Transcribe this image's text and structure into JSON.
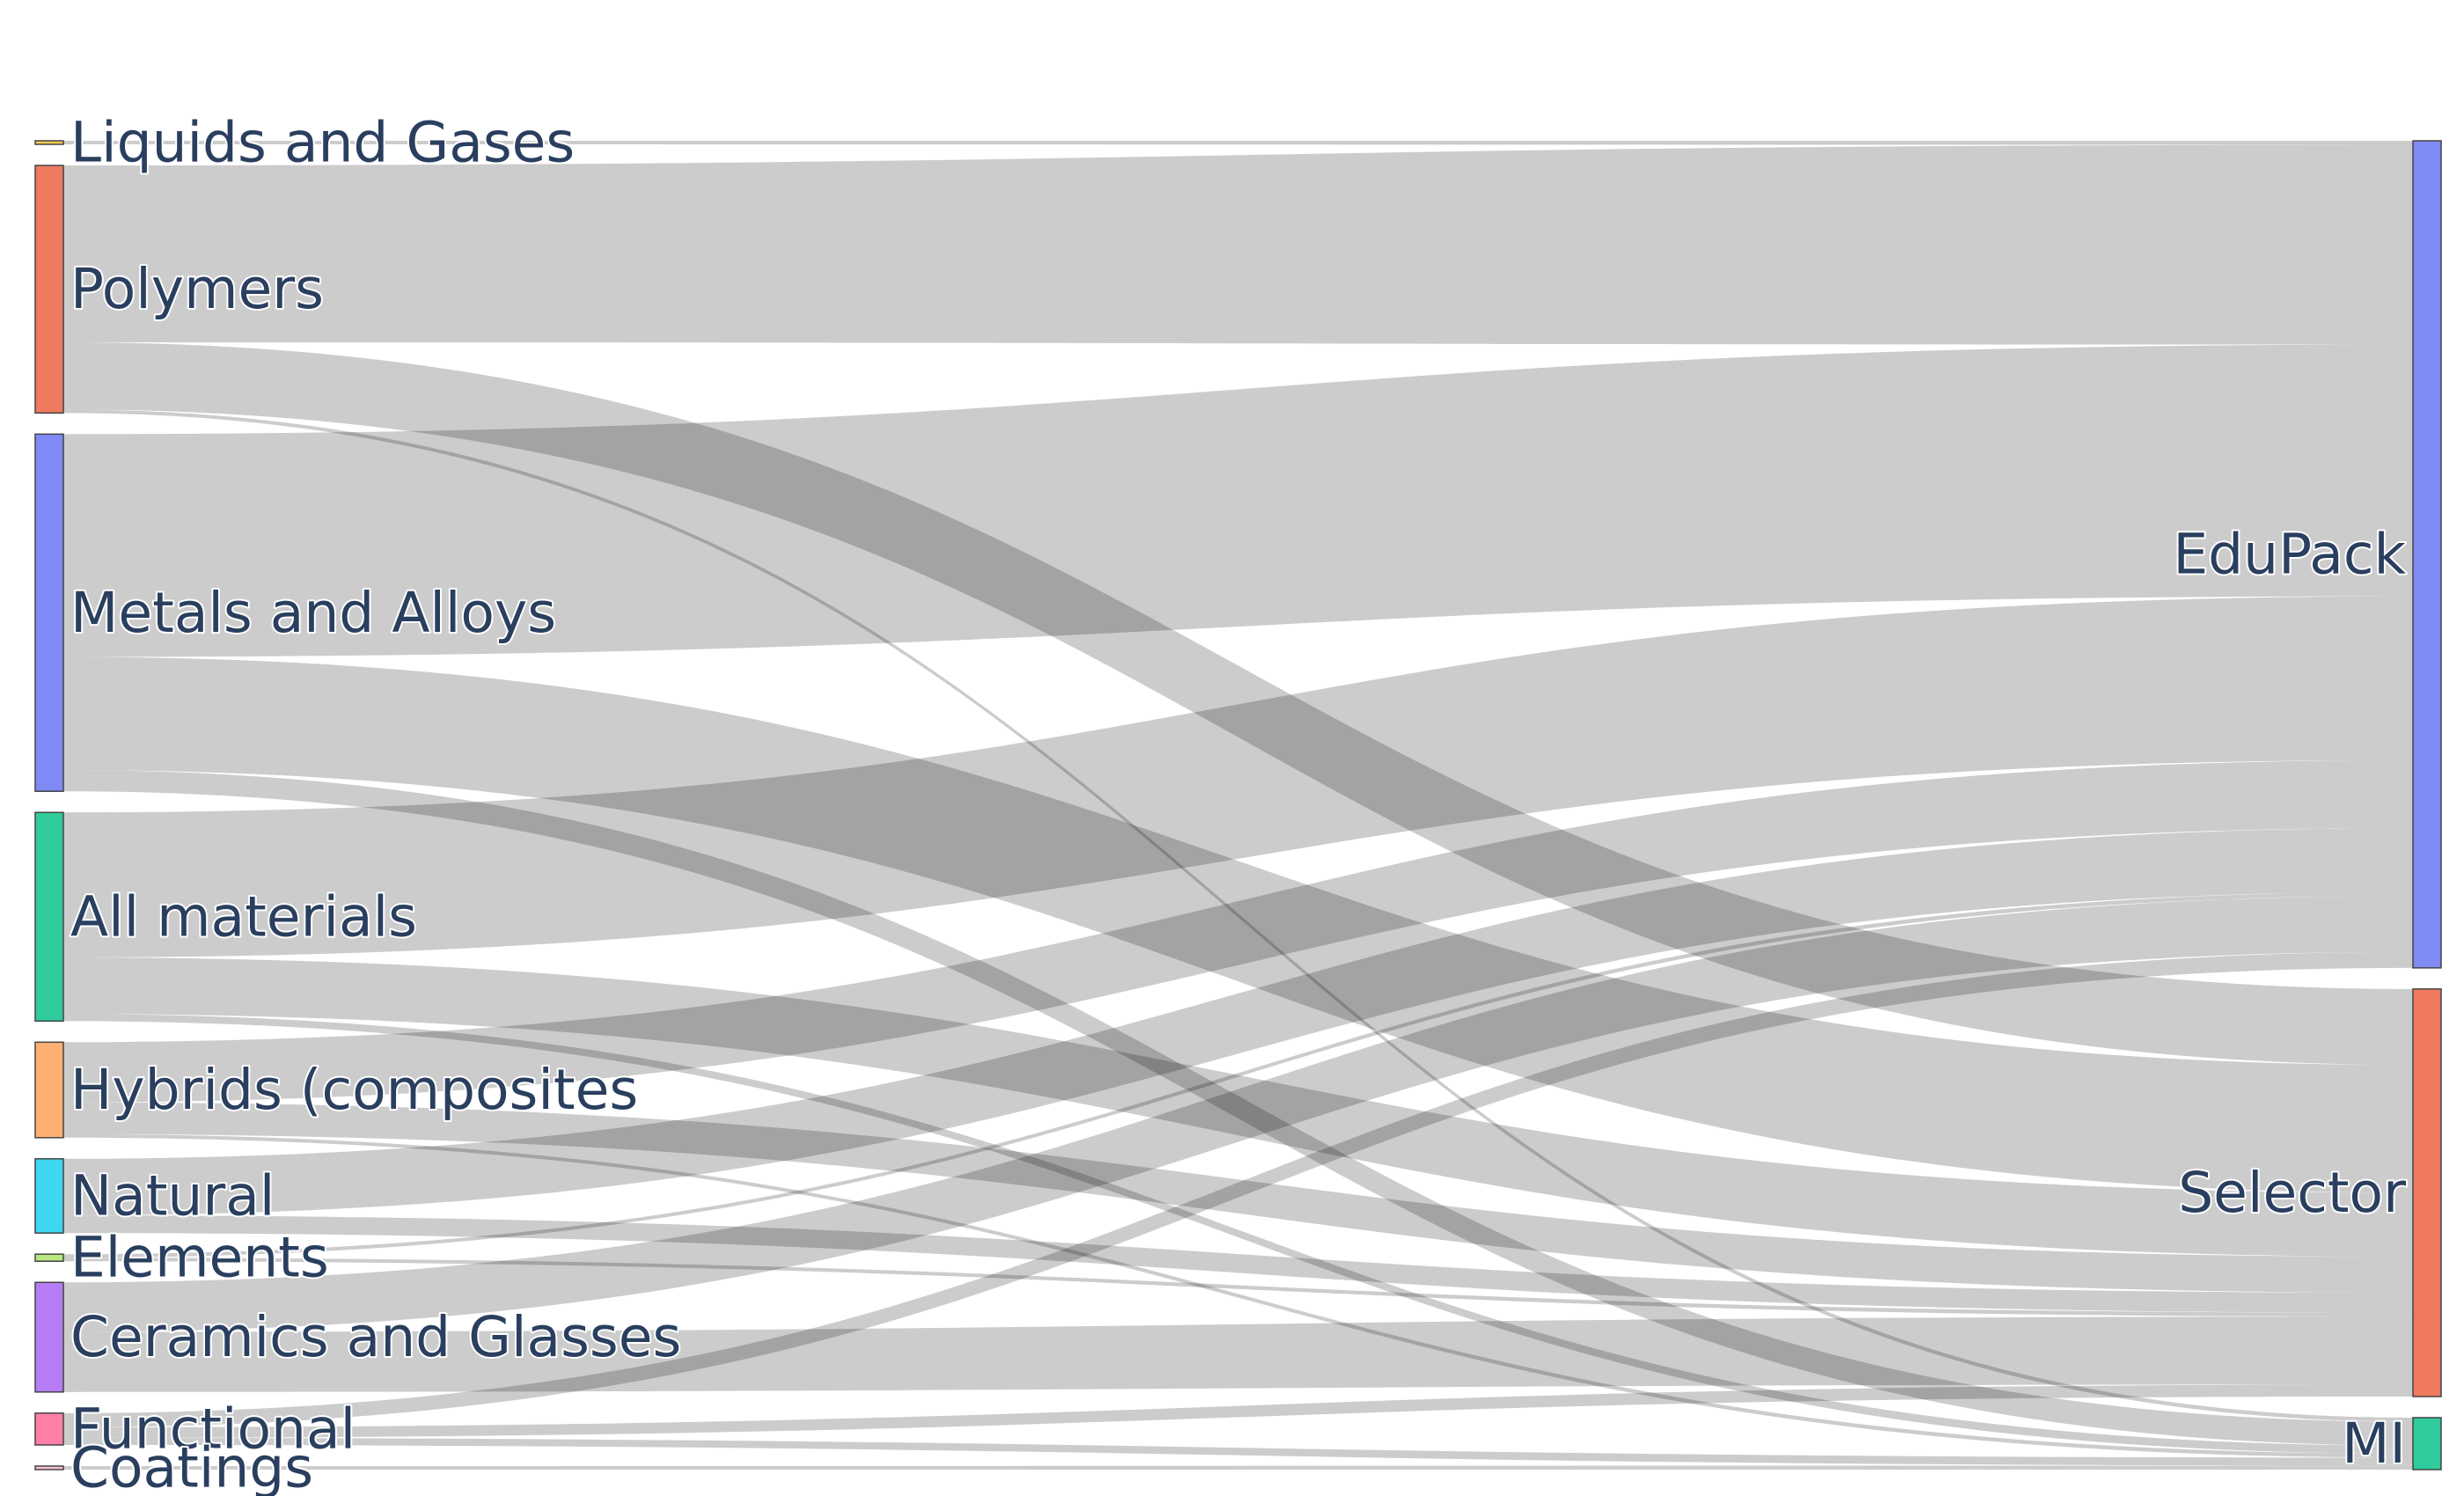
{
  "chart_data": {
    "type": "sankey",
    "link_color": "rgba(0,0,0,0.2)",
    "nodes": [
      {
        "id": "liquids",
        "label": "Liquids and Gases",
        "color": "#FECB52",
        "side": "source"
      },
      {
        "id": "polymers",
        "label": "Polymers",
        "color": "#EF7A5F",
        "side": "source"
      },
      {
        "id": "metals",
        "label": "Metals and Alloys",
        "color": "#7F8AF5",
        "side": "source"
      },
      {
        "id": "allmat",
        "label": "All materials",
        "color": "#2FCB9C",
        "side": "source"
      },
      {
        "id": "hybrids",
        "label": "Hybrids (composites",
        "color": "#FDB071",
        "side": "source"
      },
      {
        "id": "natural",
        "label": "Natural",
        "color": "#3ED6F0",
        "side": "source"
      },
      {
        "id": "elements",
        "label": "Elements",
        "color": "#B6E880",
        "side": "source"
      },
      {
        "id": "ceramics",
        "label": "Ceramics and Glasses",
        "color": "#B57CF5",
        "side": "source"
      },
      {
        "id": "functional",
        "label": "Functional",
        "color": "#FF7FA6",
        "side": "source"
      },
      {
        "id": "coatings",
        "label": "Coatings",
        "color": "#FDBFD3",
        "side": "source"
      },
      {
        "id": "edupack",
        "label": "EduPack",
        "color": "#7F8AF5",
        "side": "target"
      },
      {
        "id": "selector",
        "label": "Selector",
        "color": "#EF7A5F",
        "side": "target"
      },
      {
        "id": "mi",
        "label": "MI",
        "color": "#2FCB9C",
        "side": "target"
      }
    ],
    "links": [
      {
        "source": "liquids",
        "target": "edupack",
        "value": 1
      },
      {
        "source": "liquids",
        "target": "selector",
        "value": 0
      },
      {
        "source": "polymers",
        "target": "edupack",
        "value": 50
      },
      {
        "source": "polymers",
        "target": "selector",
        "value": 19
      },
      {
        "source": "polymers",
        "target": "mi",
        "value": 1
      },
      {
        "source": "metals",
        "target": "edupack",
        "value": 63
      },
      {
        "source": "metals",
        "target": "selector",
        "value": 32
      },
      {
        "source": "metals",
        "target": "mi",
        "value": 6
      },
      {
        "source": "allmat",
        "target": "edupack",
        "value": 41
      },
      {
        "source": "allmat",
        "target": "selector",
        "value": 16
      },
      {
        "source": "allmat",
        "target": "mi",
        "value": 2
      },
      {
        "source": "hybrids",
        "target": "edupack",
        "value": 17
      },
      {
        "source": "hybrids",
        "target": "selector",
        "value": 9
      },
      {
        "source": "hybrids",
        "target": "mi",
        "value": 1
      },
      {
        "source": "natural",
        "target": "edupack",
        "value": 16
      },
      {
        "source": "natural",
        "target": "selector",
        "value": 5
      },
      {
        "source": "elements",
        "target": "edupack",
        "value": 1
      },
      {
        "source": "elements",
        "target": "selector",
        "value": 1
      },
      {
        "source": "ceramics",
        "target": "edupack",
        "value": 14
      },
      {
        "source": "ceramics",
        "target": "selector",
        "value": 17
      },
      {
        "source": "functional",
        "target": "edupack",
        "value": 4
      },
      {
        "source": "functional",
        "target": "selector",
        "value": 3
      },
      {
        "source": "functional",
        "target": "mi",
        "value": 2
      },
      {
        "source": "coatings",
        "target": "edupack",
        "value": 0
      },
      {
        "source": "coatings",
        "target": "mi",
        "value": 1
      }
    ]
  }
}
